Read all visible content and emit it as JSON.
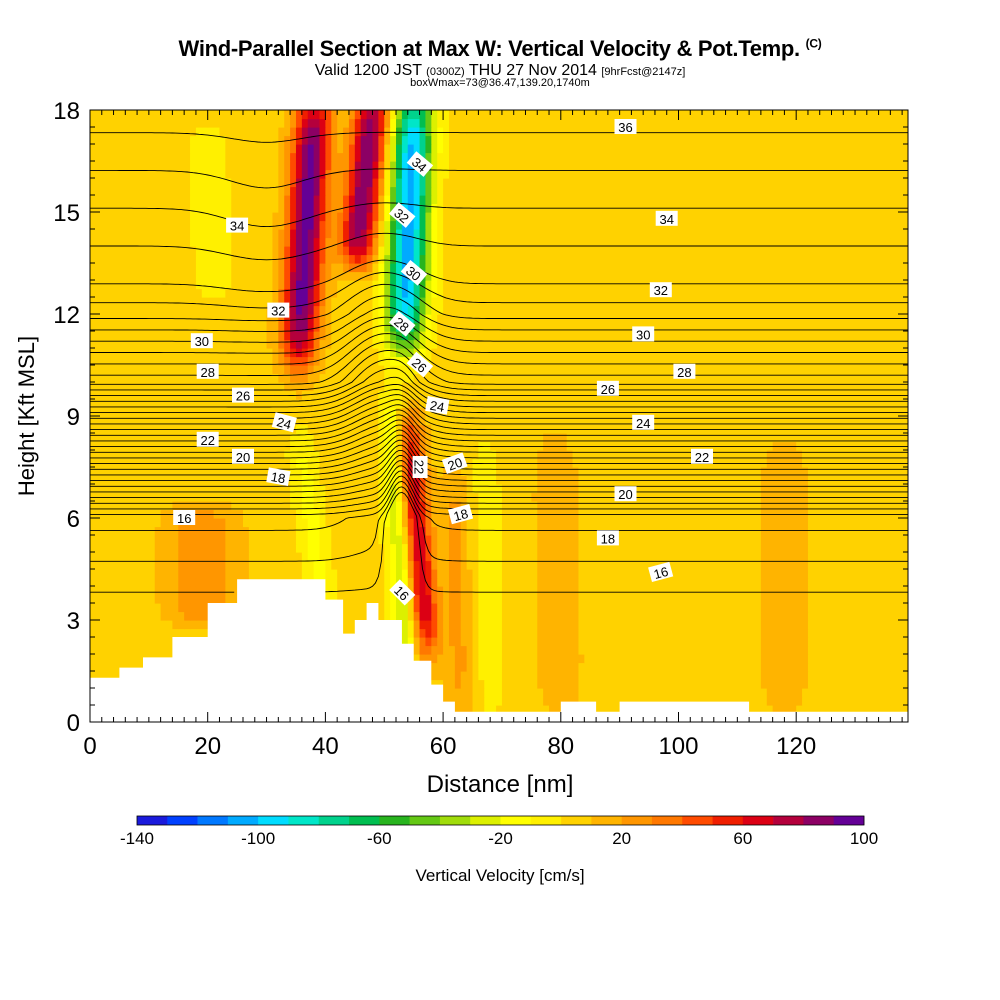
{
  "title": {
    "main": "Wind-Parallel Section at Max W: Vertical Velocity & Pot.Temp.",
    "mark": "(C)",
    "valid_prefix": "Valid 1200 JST",
    "valid_zulu": "(0300Z)",
    "valid_date": "THU 27 Nov 2014",
    "valid_fcst": "[9hrFcst@2147z]",
    "box": "boxWmax=73@36.47,139.20,1740m"
  },
  "chart_data": {
    "type": "heatmap",
    "xlabel": "Distance [nm]",
    "ylabel": "Height [Kft MSL]",
    "xlim": [
      0,
      139
    ],
    "ylim": [
      0,
      18
    ],
    "x_ticks": [
      "0",
      "20",
      "40",
      "60",
      "80",
      "100",
      "120"
    ],
    "y_ticks": [
      "0",
      "3",
      "6",
      "9",
      "12",
      "15",
      "18"
    ],
    "grid": false,
    "background_value": 5,
    "updraft_peak_cm_s": 73,
    "colorbar": {
      "label": "Vertical Velocity [cm/s]",
      "levels": [
        -140,
        -130,
        -120,
        -110,
        -100,
        -90,
        -80,
        -70,
        -60,
        -50,
        -40,
        -30,
        -20,
        -10,
        0,
        10,
        20,
        30,
        40,
        50,
        60,
        70,
        80,
        90,
        100
      ],
      "tick_labels": [
        "-140",
        "-100",
        "-60",
        "-20",
        "20",
        "60",
        "100"
      ],
      "colors": [
        "#1a1adc",
        "#0040ff",
        "#0078ff",
        "#00aaff",
        "#00dcff",
        "#00e6c8",
        "#00d28c",
        "#00be50",
        "#28b41e",
        "#64c814",
        "#a0dc0a",
        "#dcf000",
        "#ffff00",
        "#fff000",
        "#ffd200",
        "#ffb400",
        "#ff9600",
        "#ff7800",
        "#ff4b00",
        "#f01e00",
        "#dc0014",
        "#b4003c",
        "#8c0064",
        "#640096"
      ]
    },
    "terrain_kft": [
      [
        0,
        1.3
      ],
      [
        5,
        1.6
      ],
      [
        9,
        1.9
      ],
      [
        14,
        2.5
      ],
      [
        20,
        3.5
      ],
      [
        25,
        4.2
      ],
      [
        38,
        4.2
      ],
      [
        40,
        3.6
      ],
      [
        43,
        2.6
      ],
      [
        45,
        3.0
      ],
      [
        47,
        3.5
      ],
      [
        49,
        3.0
      ],
      [
        53,
        2.3
      ],
      [
        55,
        1.8
      ],
      [
        58,
        1.1
      ],
      [
        60,
        0.6
      ],
      [
        62,
        0.3
      ],
      [
        72,
        0.3
      ],
      [
        78,
        0.3
      ],
      [
        80,
        0.6
      ],
      [
        84,
        0.6
      ],
      [
        86,
        0.3
      ],
      [
        90,
        0.6
      ],
      [
        100,
        0.6
      ],
      [
        110,
        0.6
      ],
      [
        112,
        0.3
      ],
      [
        125,
        0.3
      ],
      [
        132,
        0.3
      ],
      [
        139,
        0.3
      ]
    ],
    "features": [
      {
        "name": "upper updraft band",
        "w_cm_s": 90,
        "x_at_top": 38,
        "x_at_bottom": 35.5,
        "top_kft": 18,
        "bottom_kft": 11,
        "width_nm": 3.2
      },
      {
        "name": "lee updraft band",
        "w_cm_s": 85,
        "x_at_top": 48,
        "x_at_bottom": 45.5,
        "top_kft": 18,
        "bottom_kft": 14,
        "width_nm": 3.0
      },
      {
        "name": "lee downdraft band",
        "w_cm_s": -110,
        "x_at_top": 55,
        "x_at_bottom": 53.5,
        "top_kft": 18,
        "bottom_kft": 11.5,
        "width_nm": 3.4
      },
      {
        "name": "lower updraft",
        "w_cm_s": 70,
        "x_at_top": 54,
        "x_at_bottom": 57,
        "top_kft": 8.5,
        "bottom_kft": 2.5,
        "width_nm": 2.4
      },
      {
        "name": "lower downdraft",
        "w_cm_s": -40,
        "x_at_top": 51.5,
        "x_at_bottom": 54,
        "top_kft": 9,
        "bottom_kft": 2,
        "width_nm": 2.3
      },
      {
        "name": "weak sink left",
        "w_cm_s": -18,
        "x_at_top": 36,
        "x_at_bottom": 39.5,
        "top_kft": 8,
        "bottom_kft": 3.5,
        "width_nm": 2.5
      },
      {
        "name": "weak sink upper left",
        "w_cm_s": -12,
        "x_at_top": 20,
        "x_at_bottom": 21,
        "top_kft": 17,
        "bottom_kft": 13,
        "width_nm": 3.5
      },
      {
        "name": "weak sink right",
        "w_cm_s": -10,
        "x_at_top": 67,
        "x_at_bottom": 68,
        "top_kft": 8,
        "bottom_kft": 0.5,
        "width_nm": 3
      },
      {
        "name": "weak rise right",
        "w_cm_s": 18,
        "x_at_top": 62,
        "x_at_bottom": 63,
        "top_kft": 7,
        "bottom_kft": 0.5,
        "width_nm": 2.5
      },
      {
        "name": "weak rise mid",
        "w_cm_s": 12,
        "x_at_top": 79,
        "x_at_bottom": 80,
        "top_kft": 8,
        "bottom_kft": 0.5,
        "width_nm": 4
      },
      {
        "name": "low-level rise",
        "w_cm_s": 25,
        "x_at_top": 19,
        "x_at_bottom": 19,
        "top_kft": 5.8,
        "bottom_kft": 3.4,
        "width_nm": 6
      },
      {
        "name": "weak rise far right",
        "w_cm_s": 10,
        "x_at_top": 118,
        "x_at_bottom": 118,
        "top_kft": 8,
        "bottom_kft": 0.5,
        "width_nm": 5
      }
    ],
    "isentropes": {
      "levels": [
        15,
        15.5,
        16,
        16.5,
        17,
        17.5,
        18,
        18.5,
        19,
        19.5,
        20,
        20.5,
        21,
        21.5,
        22,
        22.5,
        23,
        23.5,
        24,
        24.5,
        25,
        25.5,
        26,
        26.5,
        27,
        27.5,
        28,
        28.5,
        29,
        29.5,
        30,
        30.5,
        31,
        31.5,
        32,
        33,
        34,
        35,
        36
      ],
      "labels": [
        {
          "text": "16",
          "x": 16,
          "y_kft": 6.0,
          "angle": 0
        },
        {
          "text": "16",
          "x": 53,
          "y_kft": 3.8,
          "angle": 45
        },
        {
          "text": "16",
          "x": 97,
          "y_kft": 4.4,
          "angle": -15
        },
        {
          "text": "18",
          "x": 32,
          "y_kft": 7.2,
          "angle": 10
        },
        {
          "text": "18",
          "x": 63,
          "y_kft": 6.1,
          "angle": -15
        },
        {
          "text": "18",
          "x": 88,
          "y_kft": 5.4,
          "angle": 0
        },
        {
          "text": "20",
          "x": 26,
          "y_kft": 7.8,
          "angle": 0
        },
        {
          "text": "20",
          "x": 62,
          "y_kft": 7.6,
          "angle": -20
        },
        {
          "text": "20",
          "x": 91,
          "y_kft": 6.7,
          "angle": 0
        },
        {
          "text": "22",
          "x": 20,
          "y_kft": 8.3,
          "angle": 0
        },
        {
          "text": "22",
          "x": 56,
          "y_kft": 7.5,
          "angle": 90
        },
        {
          "text": "22",
          "x": 104,
          "y_kft": 7.8,
          "angle": 0
        },
        {
          "text": "24",
          "x": 33,
          "y_kft": 8.8,
          "angle": 15
        },
        {
          "text": "24",
          "x": 59,
          "y_kft": 9.3,
          "angle": 10
        },
        {
          "text": "24",
          "x": 94,
          "y_kft": 8.8,
          "angle": 0
        },
        {
          "text": "26",
          "x": 26,
          "y_kft": 9.6,
          "angle": 0
        },
        {
          "text": "26",
          "x": 56,
          "y_kft": 10.5,
          "angle": 40
        },
        {
          "text": "26",
          "x": 88,
          "y_kft": 9.8,
          "angle": 0
        },
        {
          "text": "28",
          "x": 20,
          "y_kft": 10.3,
          "angle": 0
        },
        {
          "text": "28",
          "x": 53,
          "y_kft": 11.7,
          "angle": 40
        },
        {
          "text": "28",
          "x": 101,
          "y_kft": 10.3,
          "angle": 0
        },
        {
          "text": "30",
          "x": 19,
          "y_kft": 11.2,
          "angle": 0
        },
        {
          "text": "30",
          "x": 55,
          "y_kft": 13.2,
          "angle": 40
        },
        {
          "text": "30",
          "x": 94,
          "y_kft": 11.4,
          "angle": 0
        },
        {
          "text": "32",
          "x": 32,
          "y_kft": 12.1,
          "angle": 0
        },
        {
          "text": "32",
          "x": 53,
          "y_kft": 14.9,
          "angle": 40
        },
        {
          "text": "32",
          "x": 97,
          "y_kft": 12.7,
          "angle": 0
        },
        {
          "text": "34",
          "x": 25,
          "y_kft": 14.6,
          "angle": 0
        },
        {
          "text": "34",
          "x": 56,
          "y_kft": 16.4,
          "angle": 40
        },
        {
          "text": "34",
          "x": 98,
          "y_kft": 14.8,
          "angle": 0
        },
        {
          "text": "36",
          "x": 91,
          "y_kft": 17.5,
          "angle": 0
        }
      ]
    }
  }
}
